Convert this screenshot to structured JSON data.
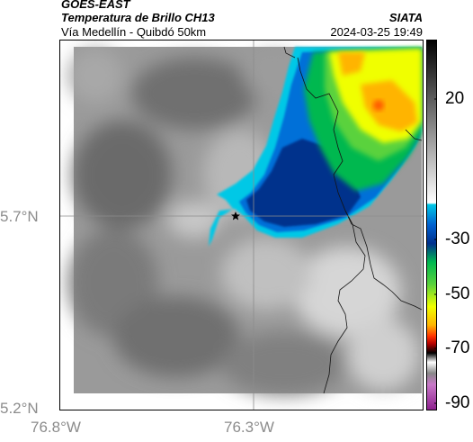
{
  "header": {
    "satellite": "GOES-EAST",
    "product": "Temperatura de Brillo CH13",
    "region": "Vía Medellín - Quibdó 50km",
    "source": "SIATA",
    "datetime": "2024-03-25 19:49"
  },
  "map": {
    "lat_ticks": [
      "5.7°N",
      "5.2°N"
    ],
    "lon_ticks": [
      "76.8°W",
      "76.3°W"
    ],
    "marker": "star-icon"
  },
  "colorbar": {
    "labels": [
      "20",
      "-30",
      "-50",
      "-70",
      "-90"
    ]
  },
  "colors": {
    "cloud_core": "#00308c",
    "cloud_edge": "#00c8e6",
    "cloud_mid": "#00b850",
    "cloud_top": "#f0ff00",
    "cloud_peak": "#ffb400"
  }
}
